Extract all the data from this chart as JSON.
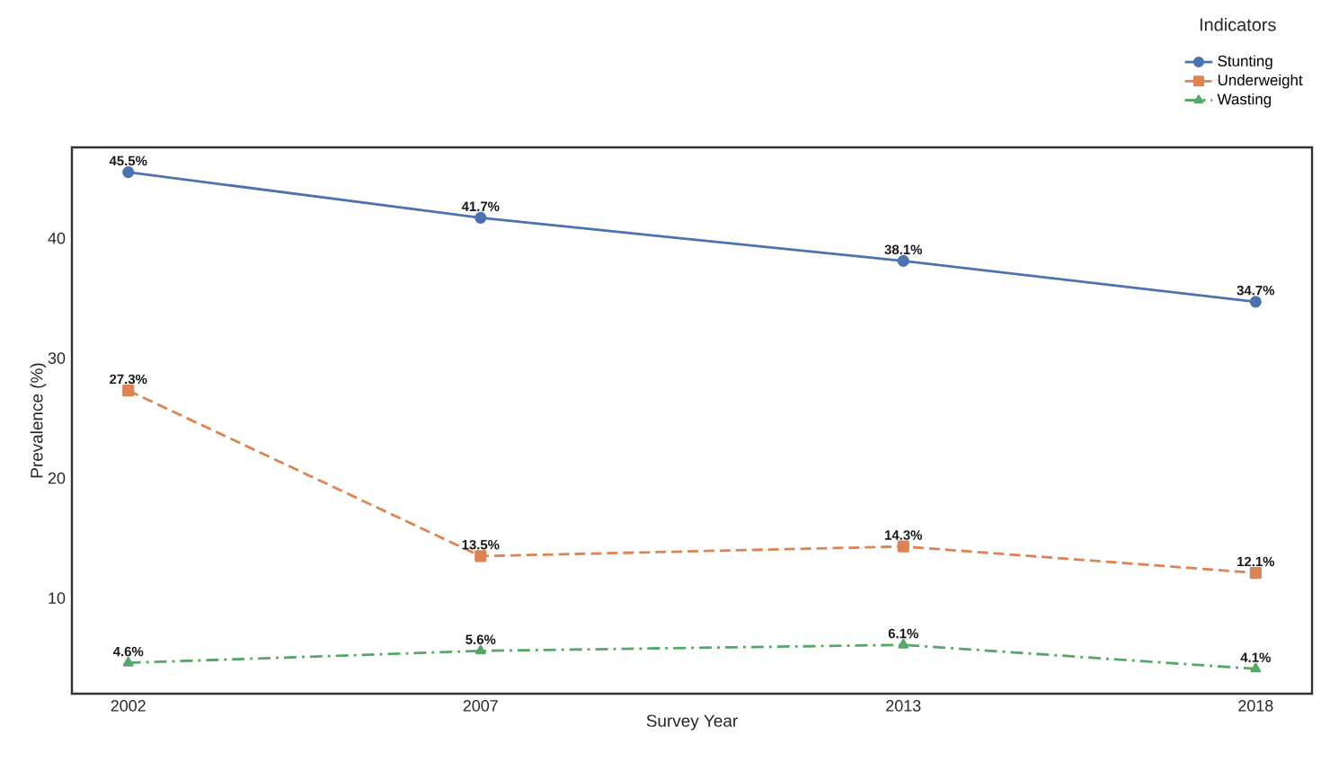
{
  "chart_data": {
    "type": "line",
    "xlabel": "Survey Year",
    "ylabel": "Prevalence (%)",
    "legend_title": "Indicators",
    "x": [
      2002,
      2007,
      2013,
      2018
    ],
    "series": [
      {
        "name": "Stunting",
        "color": "#4c72b0",
        "marker": "circle",
        "line_style": "solid",
        "values": [
          45.5,
          41.7,
          38.1,
          34.7
        ],
        "value_labels": [
          "45.5%",
          "41.7%",
          "38.1%",
          "34.7%"
        ]
      },
      {
        "name": "Underweight",
        "color": "#dd8452",
        "marker": "square",
        "line_style": "dashed",
        "values": [
          27.3,
          13.5,
          14.3,
          12.1
        ],
        "value_labels": [
          "27.3%",
          "13.5%",
          "14.3%",
          "12.1%"
        ]
      },
      {
        "name": "Wasting",
        "color": "#55a868",
        "marker": "triangle",
        "line_style": "dashdot",
        "values": [
          4.6,
          5.6,
          6.1,
          4.1
        ],
        "value_labels": [
          "4.6%",
          "5.6%",
          "6.1%",
          "4.1%"
        ]
      }
    ],
    "xlim": [
      2001.2,
      2018.8
    ],
    "xticks": [
      2002,
      2007,
      2013,
      2018
    ],
    "ylim": [
      2.03,
      47.57
    ],
    "yticks": [
      10,
      20,
      30,
      40
    ],
    "grid": false,
    "legend": "top right"
  }
}
